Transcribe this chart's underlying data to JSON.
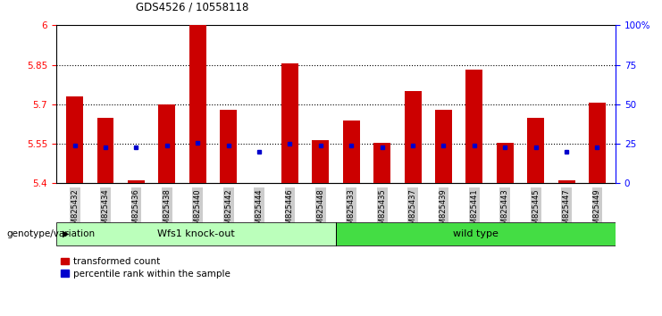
{
  "title": "GDS4526 / 10558118",
  "samples": [
    "GSM825432",
    "GSM825434",
    "GSM825436",
    "GSM825438",
    "GSM825440",
    "GSM825442",
    "GSM825444",
    "GSM825446",
    "GSM825448",
    "GSM825433",
    "GSM825435",
    "GSM825437",
    "GSM825439",
    "GSM825441",
    "GSM825443",
    "GSM825445",
    "GSM825447",
    "GSM825449"
  ],
  "red_values": [
    5.73,
    5.65,
    5.41,
    5.7,
    6.0,
    5.68,
    5.4,
    5.855,
    5.565,
    5.64,
    5.555,
    5.75,
    5.68,
    5.83,
    5.555,
    5.65,
    5.41,
    5.705
  ],
  "blue_values": [
    5.545,
    5.535,
    5.535,
    5.545,
    5.555,
    5.545,
    5.52,
    5.55,
    5.545,
    5.545,
    5.535,
    5.545,
    5.545,
    5.545,
    5.535,
    5.535,
    5.52,
    5.535
  ],
  "groups": [
    {
      "label": "Wfs1 knock-out",
      "start": 0,
      "end": 9
    },
    {
      "label": "wild type",
      "start": 9,
      "end": 18
    }
  ],
  "group_colors": [
    "#BBFFBB",
    "#44DD44"
  ],
  "ylim_left": [
    5.4,
    6.0
  ],
  "ylim_right": [
    0,
    100
  ],
  "yticks_left": [
    5.4,
    5.55,
    5.7,
    5.85,
    6.0
  ],
  "ytick_labels_left": [
    "5.4",
    "5.55",
    "5.7",
    "5.85",
    "6"
  ],
  "yticks_right": [
    0,
    25,
    50,
    75,
    100
  ],
  "ytick_labels_right": [
    "0",
    "25",
    "50",
    "75",
    "100%"
  ],
  "bar_color": "#CC0000",
  "dot_color": "#0000CC",
  "background_color": "#FFFFFF",
  "bar_width": 0.55,
  "legend_items": [
    "transformed count",
    "percentile rank within the sample"
  ],
  "group_bar_bottom_label": "genotype/variation"
}
